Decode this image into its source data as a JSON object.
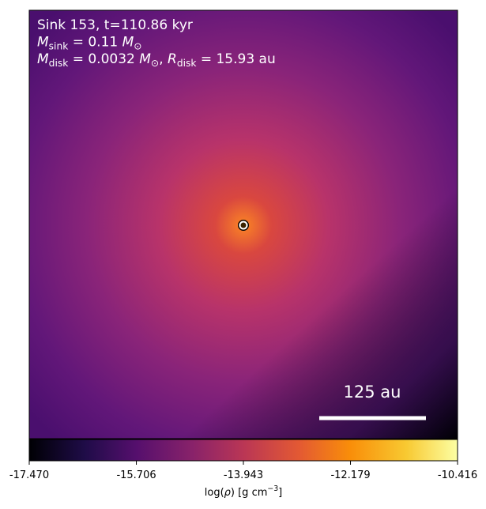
{
  "chart_data": {
    "type": "density-map",
    "annotations": [
      [
        {
          "t": "Sink 153, t=110.86 kyr"
        }
      ],
      [
        {
          "t": "M",
          "italic": true
        },
        {
          "t": "sink",
          "sub": true
        },
        {
          "t": " = 0.11 "
        },
        {
          "t": "M",
          "italic": true
        },
        {
          "t": "⊙",
          "sub": true
        }
      ],
      [
        {
          "t": "M",
          "italic": true
        },
        {
          "t": "disk",
          "sub": true
        },
        {
          "t": " = 0.0032 "
        },
        {
          "t": "M",
          "italic": true
        },
        {
          "t": "⊙",
          "sub": true
        },
        {
          "t": ", "
        },
        {
          "t": "R",
          "italic": true
        },
        {
          "t": "disk",
          "sub": true
        },
        {
          "t": " = 15.93 au"
        }
      ]
    ],
    "scale_bar_label": "125 au",
    "colorbar": {
      "colormap": "inferno",
      "clim": [
        -17.47,
        -10.416
      ],
      "ticks": [
        {
          "value": -17.47,
          "label": "-17.470"
        },
        -15.706,
        -13.943,
        -12.179,
        -10.416
      ],
      "label": [
        {
          "t": "log("
        },
        {
          "t": "ρ",
          "italic": true
        },
        {
          "t": ") [g cm"
        },
        {
          "t": "−3",
          "sup": true
        },
        {
          "t": "]"
        }
      ]
    }
  }
}
